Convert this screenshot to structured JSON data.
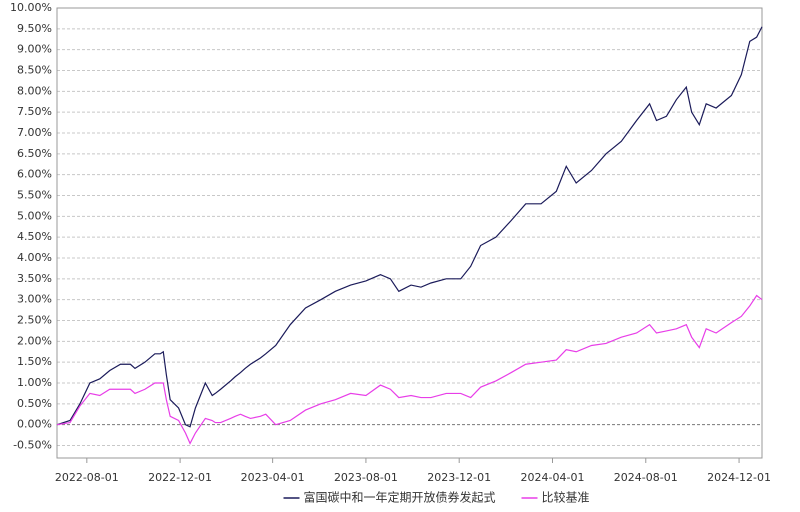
{
  "chart_data": {
    "type": "line",
    "x": [
      "2022-06-23",
      "2022-07-10",
      "2022-07-23",
      "2022-08-05",
      "2022-08-18",
      "2022-08-31",
      "2022-09-14",
      "2022-09-20",
      "2022-09-27",
      "2022-10-03",
      "2022-10-16",
      "2022-10-29",
      "2022-11-05",
      "2022-11-09",
      "2022-11-13",
      "2022-11-18",
      "2022-11-29",
      "2022-12-08",
      "2022-12-14",
      "2022-12-21",
      "2023-01-03",
      "2023-01-12",
      "2023-01-16",
      "2023-01-23",
      "2023-02-05",
      "2023-02-11",
      "2023-02-18",
      "2023-02-24",
      "2023-03-03",
      "2023-03-16",
      "2023-03-23",
      "2023-04-05",
      "2023-04-24",
      "2023-05-14",
      "2023-06-03",
      "2023-06-22",
      "2023-07-12",
      "2023-08-01",
      "2023-08-20",
      "2023-09-02",
      "2023-09-13",
      "2023-09-29",
      "2023-10-12",
      "2023-10-25",
      "2023-11-14",
      "2023-12-03",
      "2023-12-16",
      "2023-12-29",
      "2024-01-18",
      "2024-02-07",
      "2024-02-26",
      "2024-03-17",
      "2024-04-06",
      "2024-04-19",
      "2024-05-02",
      "2024-05-22",
      "2024-06-10",
      "2024-06-30",
      "2024-07-20",
      "2024-08-06",
      "2024-08-15",
      "2024-08-28",
      "2024-09-10",
      "2024-09-23",
      "2024-09-30",
      "2024-10-10",
      "2024-10-19",
      "2024-11-01",
      "2024-11-21",
      "2024-12-04",
      "2024-12-15",
      "2024-12-24",
      "2024-12-31"
    ],
    "series": [
      {
        "name": "富国碳中和一年定期开放债券发起式",
        "color": "#1b1b5a",
        "values": [
          0.0,
          0.1,
          0.5,
          1.0,
          1.1,
          1.3,
          1.45,
          1.45,
          1.45,
          1.35,
          1.5,
          1.7,
          1.7,
          1.75,
          1.2,
          0.6,
          0.4,
          0.0,
          -0.05,
          0.4,
          1.0,
          0.7,
          0.75,
          0.85,
          1.05,
          1.15,
          1.25,
          1.35,
          1.45,
          1.6,
          1.7,
          1.9,
          2.4,
          2.8,
          3.0,
          3.2,
          3.35,
          3.45,
          3.6,
          3.5,
          3.2,
          3.35,
          3.3,
          3.4,
          3.5,
          3.5,
          3.8,
          4.3,
          4.5,
          4.9,
          5.3,
          5.3,
          5.6,
          6.2,
          5.8,
          6.1,
          6.5,
          6.8,
          7.3,
          7.7,
          7.3,
          7.4,
          7.8,
          8.1,
          7.5,
          7.2,
          7.7,
          7.6,
          7.9,
          8.4,
          9.2,
          9.3,
          9.55
        ]
      },
      {
        "name": "比较基准",
        "color": "#e83ee8",
        "values": [
          0.0,
          0.05,
          0.45,
          0.75,
          0.7,
          0.85,
          0.85,
          0.85,
          0.85,
          0.75,
          0.85,
          1.0,
          1.0,
          1.0,
          0.6,
          0.2,
          0.1,
          -0.2,
          -0.45,
          -0.2,
          0.15,
          0.1,
          0.05,
          0.05,
          0.15,
          0.2,
          0.25,
          0.2,
          0.15,
          0.2,
          0.25,
          0.0,
          0.1,
          0.35,
          0.5,
          0.6,
          0.75,
          0.7,
          0.95,
          0.85,
          0.65,
          0.7,
          0.65,
          0.65,
          0.75,
          0.75,
          0.65,
          0.9,
          1.05,
          1.25,
          1.45,
          1.5,
          1.55,
          1.8,
          1.75,
          1.9,
          1.95,
          2.1,
          2.2,
          2.4,
          2.2,
          2.25,
          2.3,
          2.4,
          2.1,
          1.85,
          2.3,
          2.2,
          2.45,
          2.6,
          2.85,
          3.1,
          3.0
        ]
      }
    ],
    "xlim": [
      "2022-06-23",
      "2024-12-31"
    ],
    "xticks": [
      "2022-08-01",
      "2022-12-01",
      "2023-04-01",
      "2023-08-01",
      "2023-12-01",
      "2024-04-01",
      "2024-08-01",
      "2024-12-01"
    ],
    "ylim": [
      -0.8,
      10.0
    ],
    "yticks": [
      {
        "value": -0.5,
        "label": "-0.50%"
      },
      {
        "value": 0,
        "label": "0.00%"
      },
      {
        "value": 0.5,
        "label": "0.50%"
      },
      {
        "value": 1.0,
        "label": "1.00%"
      },
      {
        "value": 1.5,
        "label": "1.50%"
      },
      {
        "value": 2.0,
        "label": "2.00%"
      },
      {
        "value": 2.5,
        "label": "2.50%"
      },
      {
        "value": 3.0,
        "label": "3.00%"
      },
      {
        "value": 3.5,
        "label": "3.50%"
      },
      {
        "value": 4.0,
        "label": "4.00%"
      },
      {
        "value": 4.5,
        "label": "4.50%"
      },
      {
        "value": 5.0,
        "label": "5.00%"
      },
      {
        "value": 5.5,
        "label": "5.50%"
      },
      {
        "value": 6.0,
        "label": "6.00%"
      },
      {
        "value": 6.5,
        "label": "6.50%"
      },
      {
        "value": 7.0,
        "label": "7.00%"
      },
      {
        "value": 7.5,
        "label": "7.50%"
      },
      {
        "value": 8.0,
        "label": "8.00%"
      },
      {
        "value": 8.5,
        "label": "8.50%"
      },
      {
        "value": 9.0,
        "label": "9.00%"
      },
      {
        "value": 9.5,
        "label": "9.50%"
      },
      {
        "value": 10.0,
        "label": "10.00%"
      }
    ],
    "grid": true,
    "legend": "bottom"
  }
}
